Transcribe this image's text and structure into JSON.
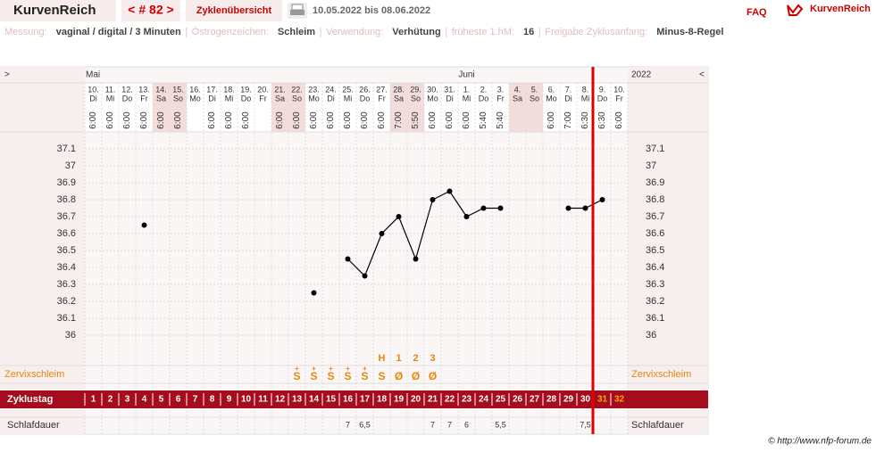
{
  "header": {
    "brand": "KurvenReich",
    "cycle_nav": "< # 82 >",
    "overview": "Zyklenübersicht",
    "date_range": "10.05.2022 bis 08.06.2022",
    "faq": "FAQ",
    "logo": "KurvenReich"
  },
  "info": [
    {
      "label": "Messung:",
      "value": "vaginal / digital / 3 Minuten"
    },
    {
      "label": "Östrogenzeichen:",
      "value": "Schleim"
    },
    {
      "label": "Verwendung:",
      "value": "Verhütung"
    },
    {
      "label": "früheste 1.hM:",
      "value": 16
    },
    {
      "label": "Freigabe Zyklusanfang:",
      "value": "Minus-8-Regel"
    }
  ],
  "chart_data": {
    "type": "line",
    "nav": [
      ">",
      "<"
    ],
    "year": "2022",
    "months": [
      "Mai",
      null,
      null,
      null,
      null,
      null,
      null,
      null,
      null,
      null,
      null,
      null,
      null,
      null,
      null,
      null,
      null,
      null,
      null,
      null,
      null,
      null,
      "Juni",
      null,
      null,
      null,
      null,
      null,
      null,
      null,
      null,
      null
    ],
    "categories": [
      "10.",
      "11.",
      "12.",
      "13.",
      "14.",
      "15.",
      "16.",
      "17.",
      "18.",
      "19.",
      "20.",
      "21.",
      "22.",
      "23.",
      "24.",
      "25.",
      "26.",
      "27.",
      "28.",
      "29.",
      "30.",
      "31.",
      "1.",
      "2.",
      "3.",
      "4.",
      "5.",
      "6.",
      "7.",
      "8.",
      "9.",
      "10."
    ],
    "weekdays": [
      "Di",
      "Mi",
      "Do",
      "Fr",
      "Sa",
      "So",
      "Mo",
      "Di",
      "Mi",
      "Do",
      "Fr",
      "Sa",
      "So",
      "Mo",
      "Di",
      "Mi",
      "Do",
      "Fr",
      "Sa",
      "So",
      "Mo",
      "Di",
      "Mi",
      "Do",
      "Fr",
      "Sa",
      "So",
      "Mo",
      "Di",
      "Mi",
      "Do",
      "Fr"
    ],
    "times": [
      "6:00",
      "6:00",
      "6:00",
      "6:00",
      "6:00",
      "6:00",
      null,
      "6:00",
      "6:00",
      "6:00",
      null,
      "6:00",
      "6:00",
      "6:00",
      "6:00",
      "6:00",
      "6:00",
      "6:00",
      "7:00",
      "5:50",
      "6:00",
      "6:00",
      "6:00",
      "5:40",
      "5:40",
      null,
      null,
      "6:00",
      "7:00",
      "6:30",
      "6:30",
      "6:00"
    ],
    "series": [
      {
        "name": "Temperatur",
        "color": "#000000",
        "values": [
          null,
          null,
          null,
          36.65,
          null,
          null,
          null,
          null,
          null,
          null,
          null,
          null,
          null,
          36.25,
          null,
          36.45,
          36.35,
          36.6,
          36.7,
          36.45,
          36.8,
          36.85,
          36.7,
          36.75,
          36.75,
          null,
          null,
          null,
          36.75,
          36.75,
          36.8,
          null
        ]
      }
    ],
    "ylim": [
      35.9,
      37.2
    ],
    "yticks": [
      36,
      36.1,
      36.2,
      36.3,
      36.4,
      36.5,
      36.6,
      36.7,
      36.8,
      36.9,
      37,
      37.1
    ],
    "row_labels": {
      "mucus": "Zervixschleim",
      "cycle_day": "Zyklustag",
      "sleep": "Schlafdauer"
    },
    "peak": [
      null,
      null,
      null,
      null,
      null,
      null,
      null,
      null,
      null,
      null,
      null,
      null,
      null,
      null,
      null,
      null,
      null,
      "H",
      "1",
      "2",
      "3",
      null,
      null,
      null,
      null,
      null,
      null,
      null,
      null,
      null,
      null,
      null
    ],
    "mucus_top": [
      null,
      null,
      null,
      null,
      null,
      null,
      null,
      null,
      null,
      null,
      null,
      null,
      "+",
      "+",
      "+",
      "+",
      "+",
      null,
      null,
      null,
      null,
      null,
      null,
      null,
      null,
      null,
      null,
      null,
      null,
      null,
      null,
      null
    ],
    "mucus": [
      null,
      null,
      null,
      null,
      null,
      null,
      null,
      null,
      null,
      null,
      null,
      null,
      "S",
      "S",
      "S",
      "S",
      "S",
      "S",
      "Ø",
      "Ø",
      "Ø",
      null,
      null,
      null,
      null,
      null,
      null,
      null,
      null,
      null,
      null,
      null
    ],
    "cycle_days": [
      1,
      2,
      3,
      4,
      5,
      6,
      7,
      8,
      9,
      10,
      11,
      12,
      13,
      14,
      15,
      16,
      17,
      18,
      19,
      20,
      21,
      22,
      23,
      24,
      25,
      26,
      27,
      28,
      29,
      30,
      31,
      32
    ],
    "sleep": [
      null,
      null,
      null,
      null,
      null,
      null,
      null,
      null,
      null,
      null,
      null,
      null,
      null,
      null,
      null,
      "7",
      "6,5",
      null,
      null,
      null,
      "7",
      "7",
      "6",
      null,
      "5,5",
      null,
      null,
      null,
      null,
      "7,5",
      null,
      null
    ]
  },
  "footer": "© http://www.nfp-forum.de"
}
